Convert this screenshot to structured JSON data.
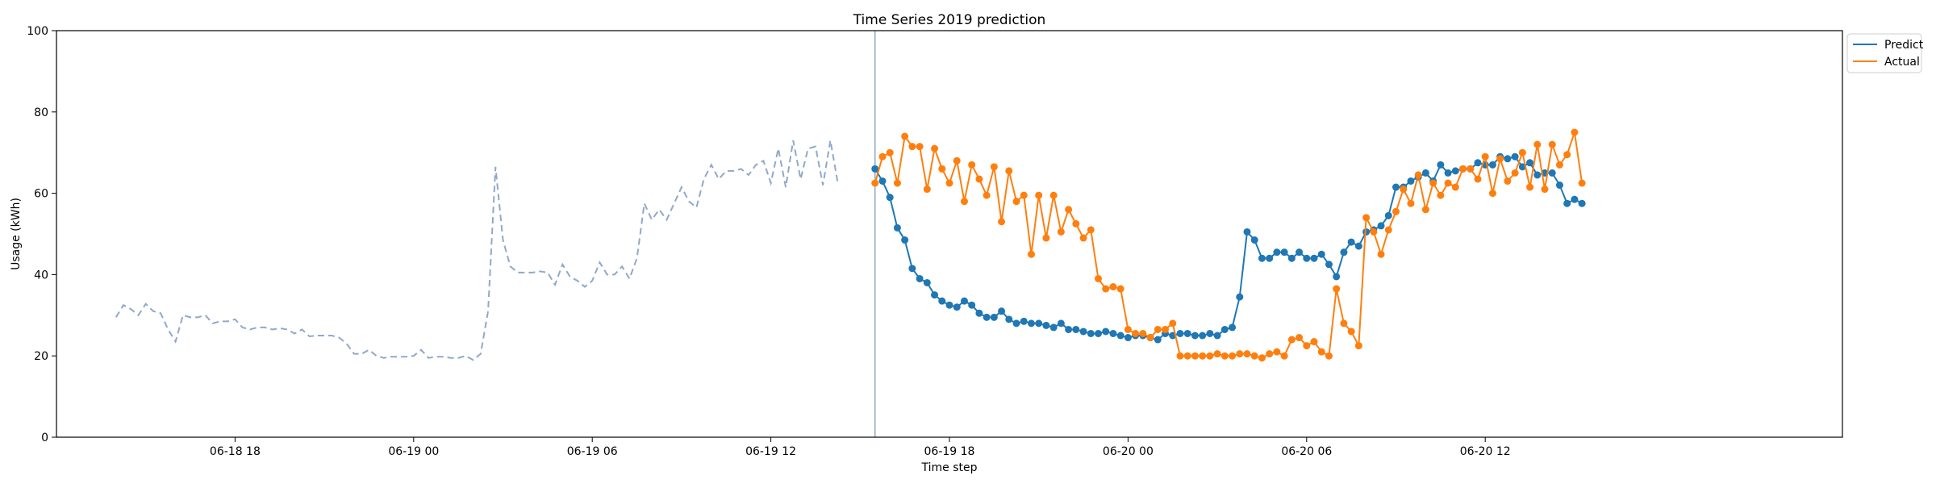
{
  "chart_data": {
    "type": "line",
    "title": "Time Series 2019 prediction",
    "xlabel": "Time step",
    "ylabel": "Usage (kWh)",
    "xlim": [
      "2019-06-18 12:00",
      "2019-06-21 00:00"
    ],
    "ylim": [
      0,
      100
    ],
    "x_ticks": [
      "06-18 18",
      "06-19 00",
      "06-19 06",
      "06-19 12",
      "06-19 18",
      "06-20 00",
      "06-20 06",
      "06-20 12"
    ],
    "y_ticks": [
      0,
      20,
      40,
      60,
      80,
      100
    ],
    "grid": false,
    "legend_position": "outside top-right",
    "forecast_start": "2019-06-19 15:30",
    "colors": {
      "history": "#8fa9c8",
      "predict": "#1f77b4",
      "actual": "#ff7f0e",
      "divider": "#8fa9c8"
    },
    "history": {
      "start": "2019-06-18 14:00",
      "step_minutes": 15,
      "values": [
        29.5,
        32.5,
        31.5,
        30.0,
        32.8,
        31.0,
        30.5,
        26.5,
        23.5,
        30.0,
        29.5,
        29.5,
        30.0,
        28.0,
        28.5,
        28.5,
        29.0,
        27.0,
        26.5,
        27.0,
        27.0,
        26.5,
        26.8,
        26.5,
        25.5,
        26.5,
        24.8,
        25.0,
        25.0,
        25.0,
        24.5,
        23.0,
        20.5,
        20.5,
        21.5,
        20.0,
        19.5,
        19.8,
        19.8,
        19.8,
        20.0,
        21.5,
        19.5,
        19.8,
        19.8,
        19.5,
        19.5,
        20.0,
        19.0,
        20.5,
        31.0,
        66.5,
        48.5,
        42.0,
        40.5,
        40.5,
        40.5,
        40.8,
        40.5,
        37.5,
        42.5,
        39.5,
        38.5,
        37.0,
        38.5,
        43.0,
        40.0,
        40.0,
        42.0,
        39.0,
        44.0,
        57.5,
        53.5,
        56.0,
        53.5,
        57.5,
        61.5,
        58.0,
        56.5,
        63.5,
        67.0,
        63.5,
        65.5,
        65.5,
        66.0,
        64.5,
        67.0,
        68.0,
        62.5,
        71.0,
        61.5,
        73.0,
        63.5,
        71.0,
        71.5,
        62.0,
        73.0,
        62.5
      ]
    },
    "forecast": {
      "start": "2019-06-19 15:30",
      "step_minutes": 15,
      "series": [
        {
          "name": "Predict",
          "values": [
            66,
            63,
            59,
            51.5,
            48.5,
            41.5,
            39,
            38,
            35,
            33.5,
            32.5,
            32,
            33.5,
            32.5,
            30.5,
            29.5,
            29.5,
            31,
            29,
            28,
            28.5,
            28,
            28,
            27.5,
            27,
            28,
            26.5,
            26.5,
            26,
            25.5,
            25.5,
            26,
            25.5,
            25,
            24.5,
            25,
            25,
            24.5,
            24,
            25.5,
            25,
            25.5,
            25.5,
            25,
            25,
            25.5,
            25,
            26.5,
            27,
            34.5,
            50.5,
            48.5,
            44,
            44,
            45.5,
            45.5,
            44,
            45.5,
            44,
            44,
            45,
            42.5,
            39.5,
            45.5,
            48,
            47,
            50.5,
            51,
            52,
            54.5,
            61.5,
            61.5,
            63,
            64,
            65,
            63,
            67,
            65,
            65.5,
            66,
            66,
            67.5,
            67,
            67,
            69,
            68.5,
            69,
            66.5,
            67.5,
            64.5,
            65,
            65,
            62,
            57.5,
            58.5,
            57.5
          ]
        },
        {
          "name": "Actual",
          "values": [
            62.5,
            69,
            70,
            62.5,
            74,
            71.5,
            71.5,
            61,
            71,
            66,
            62.5,
            68,
            58,
            67,
            63.5,
            59.5,
            66.5,
            53,
            65.5,
            58,
            59.5,
            45,
            59.5,
            49,
            59.5,
            50.5,
            56,
            52.5,
            49,
            51,
            39,
            36.5,
            37,
            36.5,
            26.5,
            25.5,
            25.5,
            24.5,
            26.5,
            26.5,
            28,
            20,
            20,
            20,
            20,
            20,
            20.5,
            20,
            20,
            20.5,
            20.5,
            20,
            19.5,
            20.5,
            21,
            20,
            24,
            24.5,
            22.5,
            23.5,
            21,
            20,
            36.5,
            28,
            26,
            22.5,
            54,
            50.5,
            45,
            51,
            55.5,
            61,
            57.5,
            64.5,
            56,
            62.5,
            59.5,
            62.5,
            61.5,
            66,
            66,
            63.5,
            69,
            60,
            68.5,
            63,
            65,
            70,
            61.5,
            72,
            61,
            72,
            67,
            69.5,
            75,
            62.5
          ]
        }
      ]
    }
  }
}
